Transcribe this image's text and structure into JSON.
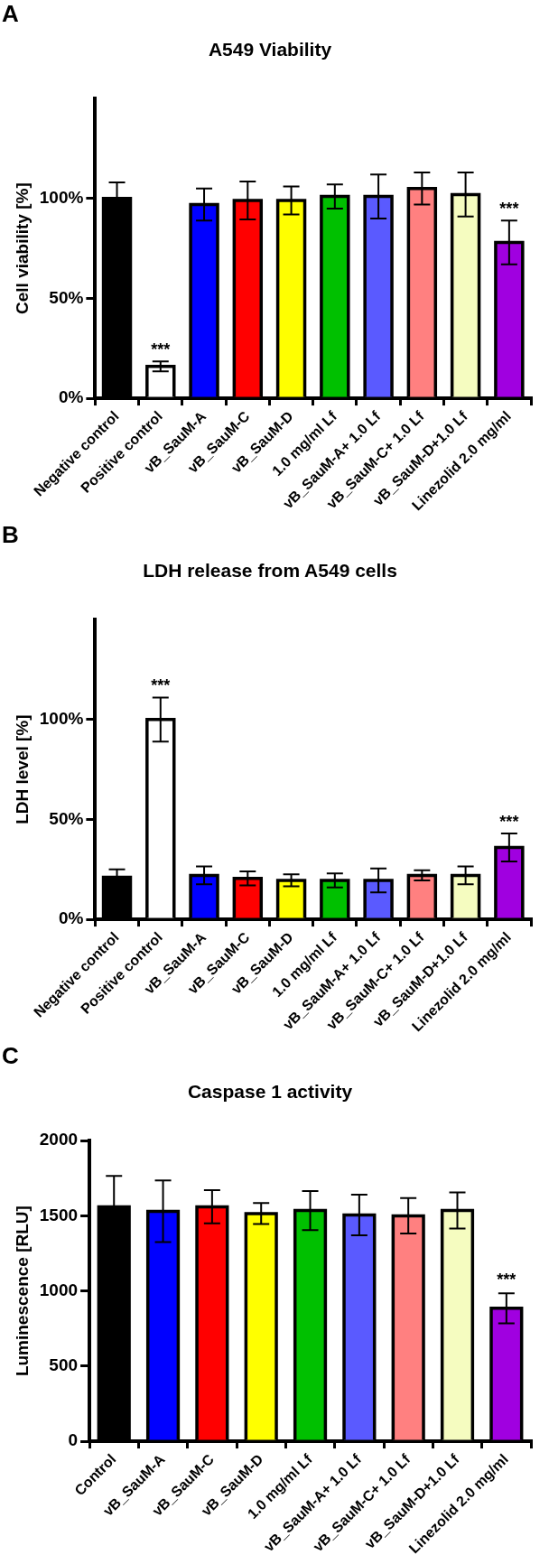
{
  "chart_data": [
    {
      "type": "bar",
      "title": "A549 Viability",
      "ylabel": "Cell viability [%]",
      "categories": [
        "Negative control",
        "Positive control",
        "vB_SauM-A",
        "vB_SauM-C",
        "vB_SauM-D",
        "1.0 mg/ml Lf",
        "vB_SauM-A+ 1.0 Lf",
        "vB_SauM-C+ 1.0 Lf",
        "vB_SauM-D+1.0 Lf",
        "Linezolid 2.0 mg/ml"
      ],
      "values": [
        100,
        16,
        97,
        99,
        99,
        101,
        101,
        105,
        102,
        78
      ],
      "errors": [
        8,
        2.5,
        8,
        9.5,
        7,
        6,
        11,
        8,
        11,
        11
      ],
      "colors": [
        "#000000",
        "#ffffff",
        "#0000ff",
        "#ff0000",
        "#ffff00",
        "#00c000",
        "#5a5aff",
        "#ff8080",
        "#f5fcc0",
        "#a000e0"
      ],
      "ylim": [
        0,
        150
      ],
      "yticks": [
        {
          "value": 0,
          "label": "0%"
        },
        {
          "value": 50,
          "label": "50%"
        },
        {
          "value": 100,
          "label": "100%"
        }
      ],
      "grid": false,
      "legend": false,
      "annotations": [
        "A",
        {
          "text": "***",
          "x": "Positive control",
          "y": 18.5
        },
        {
          "text": "***",
          "x": "Linezolid 2.0 mg/ml",
          "y": 89
        }
      ]
    },
    {
      "type": "bar",
      "title": "LDH release from A549 cells",
      "ylabel": "LDH level [%]",
      "categories": [
        "Negative control",
        "Positive control",
        "vB_SauM-A",
        "vB_SauM-C",
        "vB_SauM-D",
        "1.0 mg/ml Lf",
        "vB_SauM-A+ 1.0 Lf",
        "vB_SauM-C+ 1.0 Lf",
        "vB_SauM-D+1.0 Lf",
        "Linezolid 2.0 mg/ml"
      ],
      "values": [
        21,
        100,
        22,
        20.5,
        19.5,
        19.5,
        19.5,
        22,
        22,
        36
      ],
      "errors": [
        4,
        11,
        4.5,
        3.5,
        3,
        3.5,
        6,
        2.5,
        4.5,
        7
      ],
      "colors": [
        "#000000",
        "#ffffff",
        "#0000ff",
        "#ff0000",
        "#ffff00",
        "#00c000",
        "#5a5aff",
        "#ff8080",
        "#f5fcc0",
        "#a000e0"
      ],
      "ylim": [
        0,
        150
      ],
      "yticks": [
        {
          "value": 0,
          "label": "0%"
        },
        {
          "value": 50,
          "label": "50%"
        },
        {
          "value": 100,
          "label": "100%"
        }
      ],
      "grid": false,
      "legend": false,
      "annotations": [
        "B",
        {
          "text": "***",
          "x": "Positive control",
          "y": 111
        },
        {
          "text": "***",
          "x": "Linezolid 2.0 mg/ml",
          "y": 43
        }
      ]
    },
    {
      "type": "bar",
      "title": "Caspase 1 activity",
      "ylabel": "Luminescence [RLU]",
      "categories": [
        "Control",
        "vB_SauM-A",
        "vB_SauM-C",
        "vB_SauM-D",
        "1.0 mg/ml Lf",
        "vB_SauM-A+ 1.0 Lf",
        "vB_SauM-C+ 1.0 Lf",
        "vB_SauM-D+1.0 Lf",
        "Linezolid 2.0 mg/ml"
      ],
      "values": [
        1560,
        1530,
        1560,
        1515,
        1535,
        1505,
        1500,
        1535,
        885
      ],
      "errors": [
        205,
        205,
        110,
        70,
        130,
        135,
        118,
        120,
        100
      ],
      "colors": [
        "#000000",
        "#0000ff",
        "#ff0000",
        "#ffff00",
        "#00c000",
        "#5a5aff",
        "#ff8080",
        "#f5fcc0",
        "#a000e0"
      ],
      "ylim": [
        0,
        2000
      ],
      "yticks": [
        0,
        500,
        1000,
        1500,
        2000
      ],
      "grid": false,
      "legend": false,
      "annotations": [
        "C",
        {
          "text": "***",
          "x": "Linezolid 2.0 mg/ml",
          "y": 995
        }
      ]
    }
  ]
}
